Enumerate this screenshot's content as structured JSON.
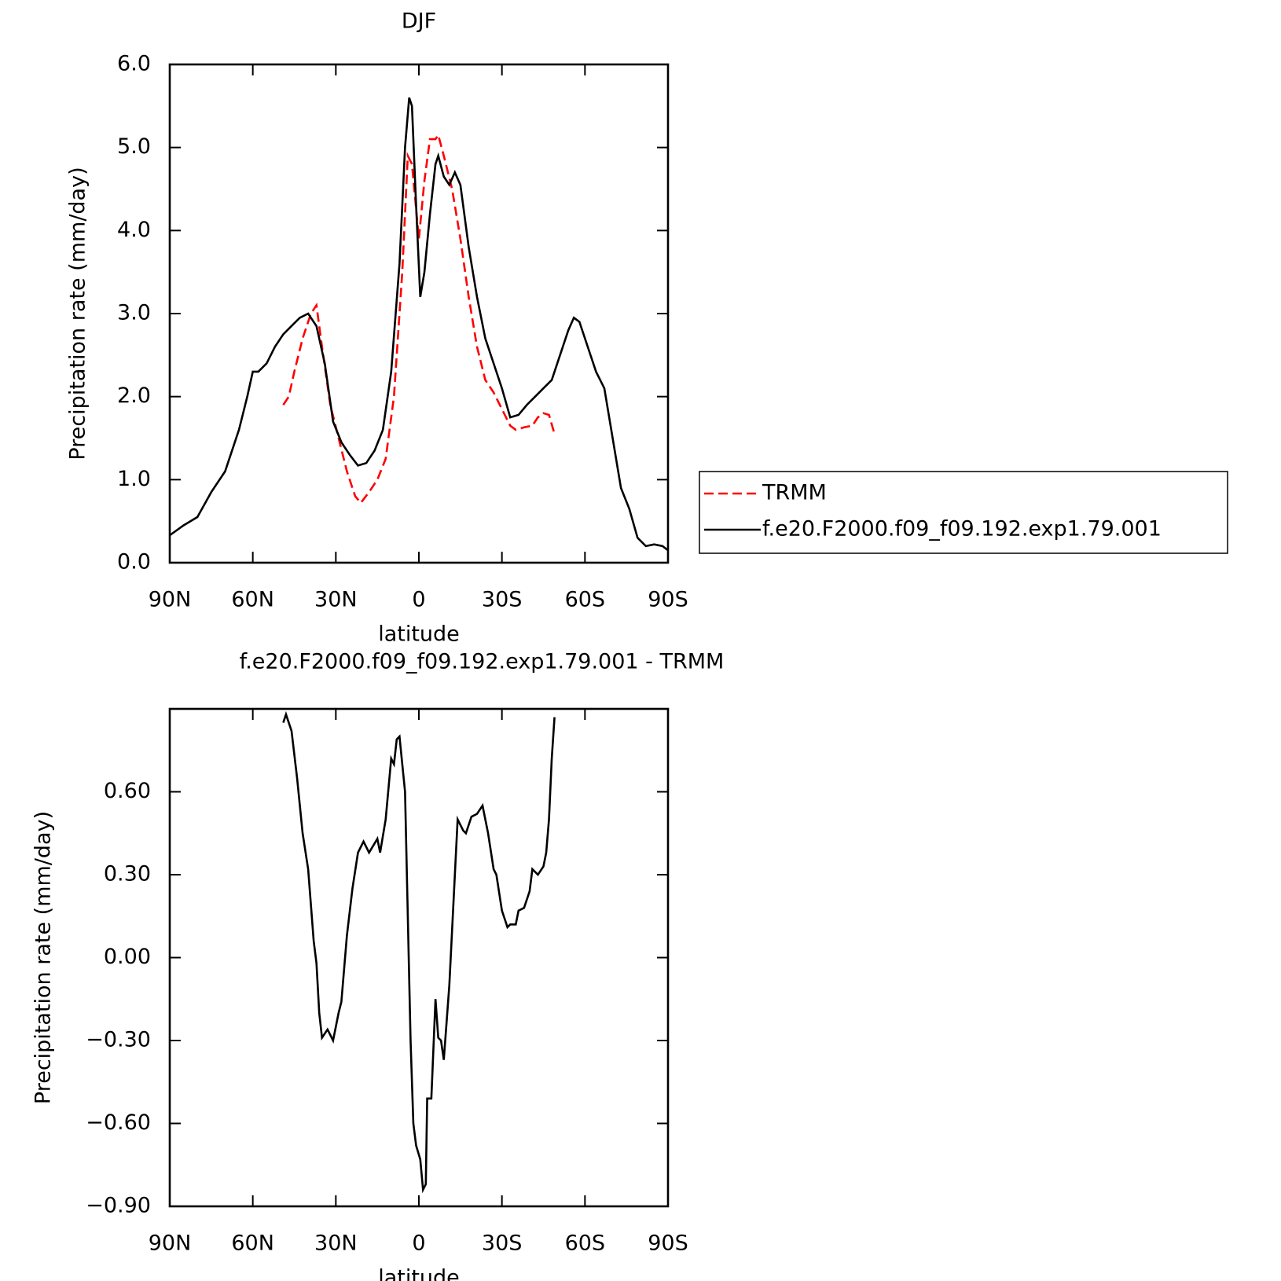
{
  "chart_data": [
    {
      "type": "line",
      "title": "DJF",
      "xlabel": "latitude",
      "ylabel": "Precipitation rate (mm/day)",
      "xlim": [
        90,
        -90
      ],
      "xticks": [
        {
          "value": 90,
          "label": "90N"
        },
        {
          "value": 60,
          "label": "60N"
        },
        {
          "value": 30,
          "label": "30N"
        },
        0,
        {
          "value": -30,
          "label": "30S"
        },
        {
          "value": -60,
          "label": "60S"
        },
        {
          "value": -90,
          "label": "90S"
        }
      ],
      "ylim": [
        0,
        6
      ],
      "yticks": [
        {
          "value": 0,
          "label": "0.0"
        },
        {
          "value": 1,
          "label": "1.0"
        },
        {
          "value": 2,
          "label": "2.0"
        },
        {
          "value": 3,
          "label": "3.0"
        },
        {
          "value": 4,
          "label": "4.0"
        },
        {
          "value": 5,
          "label": "5.0"
        },
        {
          "value": 6,
          "label": "6.0"
        }
      ],
      "legend": "right",
      "series": [
        {
          "name": "TRMM",
          "color": "#ff0000",
          "line_style": "dashed",
          "x": [
            49,
            47,
            45,
            42,
            39,
            37,
            35,
            32,
            29,
            26,
            23,
            21,
            18,
            15,
            12,
            9,
            6,
            4,
            2.5,
            0,
            -2,
            -4,
            -6,
            -7,
            -9,
            -12,
            -15,
            -18,
            -21,
            -24,
            -27,
            -30,
            -33,
            -35,
            -38,
            -41,
            -43,
            -45,
            -47,
            -49
          ],
          "values": [
            1.9,
            2.0,
            2.3,
            2.7,
            3.0,
            3.1,
            2.6,
            1.9,
            1.5,
            1.1,
            0.8,
            0.72,
            0.85,
            1.0,
            1.25,
            2.0,
            3.5,
            4.9,
            4.8,
            3.9,
            4.6,
            5.1,
            5.1,
            5.15,
            4.9,
            4.5,
            3.9,
            3.2,
            2.6,
            2.2,
            2.05,
            1.85,
            1.65,
            1.6,
            1.63,
            1.65,
            1.75,
            1.8,
            1.78,
            1.55
          ]
        },
        {
          "name": "f.e20.F2000.f09_f09.192.exp1.79.001",
          "color": "#000000",
          "line_style": "solid",
          "x": [
            90,
            85,
            80,
            75,
            70,
            65,
            62,
            60,
            58,
            55,
            52,
            49,
            46,
            43,
            40,
            37,
            34,
            31,
            28,
            25,
            22,
            19,
            16,
            13,
            10,
            7,
            5,
            3.5,
            2.5,
            1,
            -0.5,
            -2,
            -4,
            -6,
            -7,
            -9,
            -11,
            -13,
            -15,
            -18,
            -21,
            -24,
            -27,
            -30,
            -33,
            -36,
            -39,
            -42,
            -45,
            -48,
            -51,
            -54,
            -56,
            -58,
            -61,
            -64,
            -67,
            -70,
            -73,
            -76,
            -79,
            -82,
            -85,
            -88,
            -90
          ],
          "values": [
            0.33,
            0.45,
            0.55,
            0.85,
            1.1,
            1.6,
            2.0,
            2.3,
            2.3,
            2.4,
            2.6,
            2.75,
            2.85,
            2.95,
            3.0,
            2.85,
            2.4,
            1.7,
            1.45,
            1.3,
            1.17,
            1.2,
            1.35,
            1.6,
            2.3,
            3.6,
            5.0,
            5.6,
            5.5,
            4.3,
            3.2,
            3.5,
            4.2,
            4.8,
            4.9,
            4.65,
            4.55,
            4.7,
            4.55,
            3.8,
            3.2,
            2.7,
            2.4,
            2.1,
            1.75,
            1.78,
            1.9,
            2.0,
            2.1,
            2.2,
            2.5,
            2.8,
            2.95,
            2.9,
            2.6,
            2.3,
            2.1,
            1.5,
            0.9,
            0.65,
            0.3,
            0.2,
            0.22,
            0.2,
            0.15
          ]
        }
      ]
    },
    {
      "type": "line",
      "title": "f.e20.F2000.f09_f09.192.exp1.79.001 - TRMM",
      "xlabel": "latitude",
      "ylabel": "Precipitation rate (mm/day)",
      "xlim": [
        90,
        -90
      ],
      "xticks": [
        {
          "value": 90,
          "label": "90N"
        },
        {
          "value": 60,
          "label": "60N"
        },
        {
          "value": 30,
          "label": "30N"
        },
        0,
        {
          "value": -30,
          "label": "30S"
        },
        {
          "value": -60,
          "label": "60S"
        },
        {
          "value": -90,
          "label": "90S"
        }
      ],
      "ylim": [
        -0.9,
        0.9
      ],
      "yticks": [
        {
          "value": -0.9,
          "label": "−0.90"
        },
        {
          "value": -0.6,
          "label": "−0.60"
        },
        {
          "value": -0.3,
          "label": "−0.30"
        },
        {
          "value": 0,
          "label": "0.00"
        },
        {
          "value": 0.3,
          "label": "0.30"
        },
        {
          "value": 0.6,
          "label": "0.60"
        }
      ],
      "color": "#000000",
      "x": [
        49,
        48,
        46,
        44,
        42,
        40,
        38,
        37,
        36,
        35,
        33,
        31,
        29,
        28,
        26,
        24,
        22,
        20,
        18,
        15,
        14,
        12,
        10,
        9,
        8,
        7,
        5,
        3,
        2,
        1,
        -0.5,
        -1.5,
        -2.5,
        -3,
        -4.5,
        -6,
        -7,
        -8,
        -9,
        -11,
        -13,
        -14,
        -16,
        -17,
        -19,
        -21,
        -23,
        -25,
        -27,
        -28,
        -30,
        -31,
        -32,
        -33,
        -35,
        -36,
        -38,
        -40,
        -41,
        -43,
        -45,
        -46,
        -47,
        -48,
        -49
      ],
      "values": [
        0.85,
        0.88,
        0.82,
        0.65,
        0.45,
        0.32,
        0.06,
        -0.02,
        -0.2,
        -0.29,
        -0.26,
        -0.3,
        -0.2,
        -0.16,
        0.08,
        0.25,
        0.38,
        0.42,
        0.38,
        0.43,
        0.38,
        0.5,
        0.72,
        0.7,
        0.79,
        0.8,
        0.6,
        -0.3,
        -0.6,
        -0.68,
        -0.73,
        -0.84,
        -0.82,
        -0.51,
        -0.51,
        -0.15,
        -0.29,
        -0.3,
        -0.37,
        -0.1,
        0.3,
        0.5,
        0.46,
        0.45,
        0.51,
        0.52,
        0.55,
        0.45,
        0.32,
        0.3,
        0.17,
        0.14,
        0.11,
        0.12,
        0.12,
        0.17,
        0.18,
        0.24,
        0.32,
        0.3,
        0.33,
        0.38,
        0.5,
        0.72,
        0.87
      ]
    }
  ]
}
